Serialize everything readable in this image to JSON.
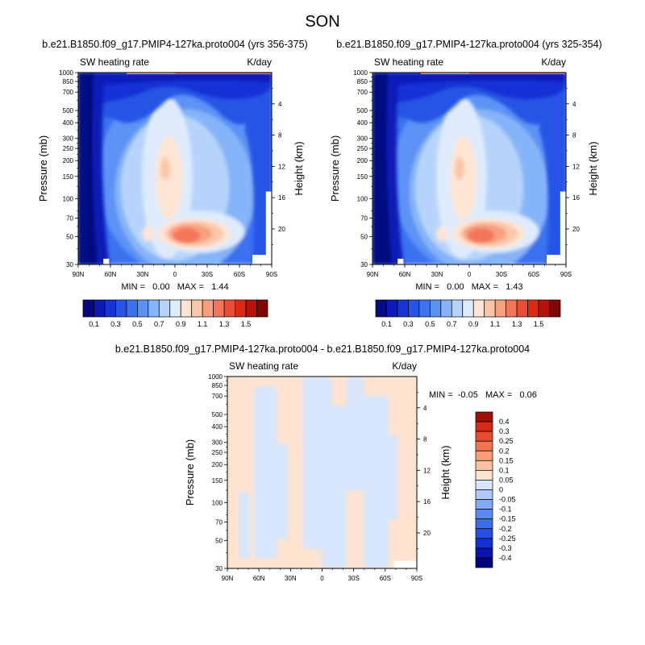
{
  "figure_title": "SON",
  "colors": {
    "main_scale": [
      "#050a80",
      "#0b1ab8",
      "#1533d6",
      "#2554e6",
      "#3a72ef",
      "#5b93f5",
      "#86b4f8",
      "#b6d4fb",
      "#deebfd",
      "#fde5d4",
      "#fbc6a8",
      "#f8a07e",
      "#f4765a",
      "#ec4d35",
      "#dc2a17",
      "#b8130a",
      "#820603"
    ],
    "diff_scale": [
      "#03057a",
      "#0a15b0",
      "#1530d2",
      "#2450e2",
      "#3a6cec",
      "#5a8bf3",
      "#84aaf6",
      "#b0c9f9",
      "#d7e6fc",
      "#fde3d0",
      "#fbc2a2",
      "#f89c78",
      "#f47252",
      "#e94a32",
      "#d52817",
      "#a40d06"
    ]
  },
  "panels": [
    {
      "id": "left",
      "title": "b.e21.B1850.f09_g17.PMIP4-127ka.proto004 (yrs 356-375)",
      "left_label": "SW heating rate",
      "right_label": "K/day",
      "y_axis_title": "Pressure (mb)",
      "y2_axis_title": "Height (km)",
      "min_max_text": "MIN =   0.00   MAX =   1.44",
      "colorbar_labels": [
        "0.1",
        "0.3",
        "0.5",
        "0.7",
        "0.9",
        "1.1",
        "1.3",
        "1.5"
      ]
    },
    {
      "id": "right",
      "title": "b.e21.B1850.f09_g17.PMIP4-127ka.proto004 (yrs 325-354)",
      "left_label": "SW heating rate",
      "right_label": "K/day",
      "y_axis_title": "Pressure (mb)",
      "y2_axis_title": "Height (km)",
      "min_max_text": "MIN =   0.00   MAX =   1.43",
      "colorbar_labels": [
        "0.1",
        "0.3",
        "0.5",
        "0.7",
        "0.9",
        "1.1",
        "1.3",
        "1.5"
      ]
    },
    {
      "id": "diff",
      "title": "b.e21.B1850.f09_g17.PMIP4-127ka.proto004 - b.e21.B1850.f09_g17.PMIP4-127ka.proto004",
      "left_label": "SW heating rate",
      "right_label": "K/day",
      "y_axis_title": "Pressure (mb)",
      "y2_axis_title": "Height (km)",
      "min_max_text": "MIN =  -0.05   MAX =   0.06",
      "colorbar_labels": [
        "0.4",
        "0.3",
        "0.25",
        "0.2",
        "0.15",
        "0.1",
        "0.05",
        "0",
        "-0.05",
        "-0.1",
        "-0.15",
        "-0.2",
        "-0.25",
        "-0.3",
        "-0.4"
      ]
    }
  ],
  "chart_data": [
    {
      "type": "heatmap",
      "title": "b.e21.B1850.f09_g17.PMIP4-127ka.proto004 (yrs 356-375)",
      "xlabel": "",
      "ylabel": "Pressure (mb)",
      "y2label": "Height (km)",
      "x_ticks": [
        "90N",
        "60N",
        "30N",
        "0",
        "30S",
        "60S",
        "90S"
      ],
      "y_ticks": [
        "30",
        "50",
        "70",
        "100",
        "150",
        "200",
        "250",
        "300",
        "400",
        "500",
        "700",
        "850",
        "1000"
      ],
      "y2_ticks": [
        "20",
        "16",
        "12",
        "8",
        "4"
      ],
      "y_scale": "log",
      "ylim": [
        1000,
        30
      ],
      "xlim": [
        90,
        -90
      ],
      "variable": "SW heating rate",
      "units": "K/day",
      "min": 0.0,
      "max": 1.44,
      "contour_levels": [
        0.1,
        0.2,
        0.3,
        0.4,
        0.5,
        0.6,
        0.7,
        0.8,
        0.9,
        1.0,
        1.1,
        1.2,
        1.3,
        1.4,
        1.5
      ],
      "colorbar_ticks": [
        0.1,
        0.3,
        0.5,
        0.7,
        0.9,
        1.1,
        1.3,
        1.5
      ]
    },
    {
      "type": "heatmap",
      "title": "b.e21.B1850.f09_g17.PMIP4-127ka.proto004 (yrs 325-354)",
      "xlabel": "",
      "ylabel": "Pressure (mb)",
      "y2label": "Height (km)",
      "x_ticks": [
        "90N",
        "60N",
        "30N",
        "0",
        "30S",
        "60S",
        "90S"
      ],
      "y_ticks": [
        "30",
        "50",
        "70",
        "100",
        "150",
        "200",
        "250",
        "300",
        "400",
        "500",
        "700",
        "850",
        "1000"
      ],
      "y2_ticks": [
        "20",
        "16",
        "12",
        "8",
        "4"
      ],
      "y_scale": "log",
      "ylim": [
        1000,
        30
      ],
      "xlim": [
        90,
        -90
      ],
      "variable": "SW heating rate",
      "units": "K/day",
      "min": 0.0,
      "max": 1.43,
      "contour_levels": [
        0.1,
        0.2,
        0.3,
        0.4,
        0.5,
        0.6,
        0.7,
        0.8,
        0.9,
        1.0,
        1.1,
        1.2,
        1.3,
        1.4,
        1.5
      ],
      "colorbar_ticks": [
        0.1,
        0.3,
        0.5,
        0.7,
        0.9,
        1.1,
        1.3,
        1.5
      ]
    },
    {
      "type": "heatmap",
      "title": "b.e21.B1850.f09_g17.PMIP4-127ka.proto004 - b.e21.B1850.f09_g17.PMIP4-127ka.proto004",
      "xlabel": "",
      "ylabel": "Pressure (mb)",
      "y2label": "Height (km)",
      "x_ticks": [
        "90N",
        "60N",
        "30N",
        "0",
        "30S",
        "60S",
        "90S"
      ],
      "y_ticks": [
        "30",
        "50",
        "70",
        "100",
        "150",
        "200",
        "250",
        "300",
        "400",
        "500",
        "700",
        "850",
        "1000"
      ],
      "y2_ticks": [
        "20",
        "16",
        "12",
        "8",
        "4"
      ],
      "y_scale": "log",
      "ylim": [
        1000,
        30
      ],
      "xlim": [
        90,
        -90
      ],
      "variable": "SW heating rate",
      "units": "K/day",
      "min": -0.05,
      "max": 0.06,
      "contour_levels": [
        -0.4,
        -0.3,
        -0.25,
        -0.2,
        -0.15,
        -0.1,
        -0.05,
        0,
        0.05,
        0.1,
        0.15,
        0.2,
        0.25,
        0.3,
        0.4
      ],
      "colorbar_ticks": [
        0.4,
        0.3,
        0.25,
        0.2,
        0.15,
        0.1,
        0.05,
        0,
        -0.05,
        -0.1,
        -0.15,
        -0.2,
        -0.25,
        -0.3,
        -0.4
      ]
    }
  ]
}
